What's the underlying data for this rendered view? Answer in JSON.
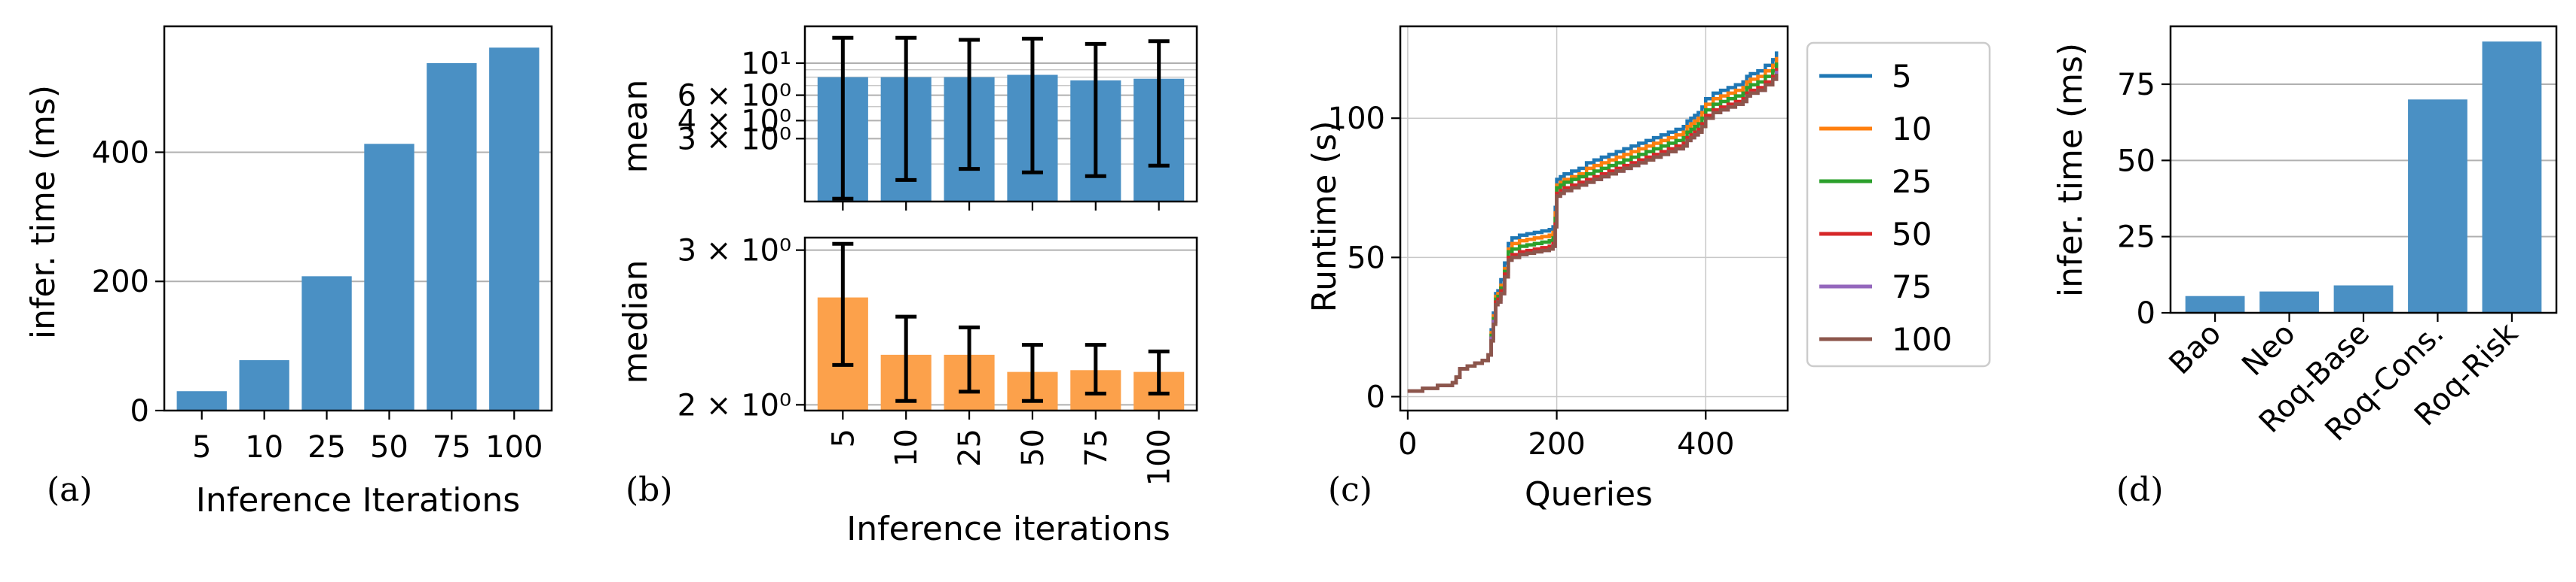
{
  "colors": {
    "blue": "#4a90c4",
    "orange": "#fca14b",
    "series": [
      "#1f77b4",
      "#ff7f0e",
      "#2ca02c",
      "#d62728",
      "#9467bd",
      "#8c564b"
    ]
  },
  "chart_data": [
    {
      "id": "a",
      "panel_label": "(a)",
      "type": "bar",
      "categories": [
        "5",
        "10",
        "25",
        "50",
        "75",
        "100"
      ],
      "values": [
        30,
        78,
        208,
        413,
        538,
        562
      ],
      "xlabel": "Inference Iterations",
      "ylabel": "infer. time (ms)",
      "ylim": [
        0,
        595
      ],
      "yticks": [
        0,
        200,
        400
      ],
      "grid": "horizontal"
    },
    {
      "id": "b",
      "panel_label": "(b)",
      "type": "bar",
      "categories": [
        "5",
        "10",
        "25",
        "50",
        "75",
        "100"
      ],
      "xlabel": "Inference iterations",
      "subplots": [
        {
          "ylabel": "mean",
          "scale": "log",
          "ylim": [
            1.1,
            18
          ],
          "values": [
            8.0,
            8.0,
            8.0,
            8.3,
            7.6,
            7.8
          ],
          "err_low": [
            1.15,
            1.55,
            1.85,
            1.75,
            1.65,
            1.95
          ],
          "err_high": [
            15.0,
            15.0,
            14.5,
            14.8,
            13.6,
            14.2
          ],
          "yticks": [
            {
              "value": 3,
              "label": "3 × 10⁰"
            },
            {
              "value": 4,
              "label": "4 × 10⁰"
            },
            {
              "value": 6,
              "label": "6 × 10⁰"
            },
            {
              "value": 10,
              "label": "10¹"
            }
          ],
          "minor_grid": [
            2,
            3,
            4,
            5,
            6,
            7,
            8,
            9,
            10,
            20
          ]
        },
        {
          "ylabel": "median",
          "scale": "log",
          "ylim": [
            1.97,
            3.1
          ],
          "values": [
            2.65,
            2.28,
            2.28,
            2.18,
            2.19,
            2.18
          ],
          "err_low": [
            2.22,
            2.02,
            2.07,
            2.02,
            2.06,
            2.06
          ],
          "err_high": [
            3.05,
            2.52,
            2.45,
            2.34,
            2.34,
            2.3
          ],
          "yticks": [
            {
              "value": 2,
              "label": "2 × 10⁰"
            },
            {
              "value": 3,
              "label": "3 × 10⁰"
            }
          ]
        }
      ]
    },
    {
      "id": "c",
      "panel_label": "(c)",
      "type": "line",
      "xlabel": "Queries",
      "ylabel": "Runtime (s)",
      "xlim": [
        -10,
        510
      ],
      "ylim": [
        -5,
        133
      ],
      "xticks": [
        0,
        200,
        400
      ],
      "yticks": [
        0,
        50,
        100
      ],
      "legend_position": "outside-right",
      "x": [
        0,
        20,
        40,
        60,
        65,
        70,
        80,
        90,
        100,
        108,
        112,
        115,
        118,
        121,
        125,
        130,
        135,
        140,
        150,
        160,
        170,
        180,
        190,
        195,
        198,
        200,
        205,
        210,
        220,
        230,
        240,
        250,
        260,
        270,
        280,
        290,
        300,
        310,
        320,
        330,
        340,
        350,
        360,
        370,
        375,
        380,
        385,
        390,
        395,
        400,
        410,
        420,
        430,
        440,
        450,
        455,
        460,
        470,
        480,
        490,
        495
      ],
      "series": [
        {
          "name": "5",
          "values": [
            2,
            3,
            4,
            5,
            7,
            10,
            11,
            12,
            13,
            15,
            24,
            30,
            37,
            38,
            42,
            48,
            55,
            57,
            58,
            58.5,
            59,
            59.5,
            60,
            61,
            68,
            78,
            79,
            80,
            81,
            82,
            84,
            85,
            86,
            87,
            88,
            89,
            90,
            91,
            92,
            93,
            94,
            95,
            96,
            97,
            99,
            100,
            101,
            102,
            104,
            107,
            109,
            110,
            111,
            112,
            113,
            115,
            116,
            117,
            119,
            121,
            124
          ]
        },
        {
          "name": "10",
          "values": [
            2,
            3,
            4,
            5,
            7,
            10,
            11,
            12,
            13,
            15,
            23,
            29,
            36,
            37,
            40,
            46,
            53,
            55,
            56,
            56.5,
            57,
            57.5,
            58,
            59,
            66,
            76,
            77,
            78,
            79,
            80,
            82,
            83,
            84,
            85,
            86,
            87,
            88,
            89,
            90,
            91,
            92,
            93,
            94,
            95,
            97,
            98,
            99,
            100,
            102,
            105,
            107,
            108,
            109,
            110,
            111,
            113,
            114,
            115,
            117,
            119,
            122
          ]
        },
        {
          "name": "25",
          "values": [
            2,
            3,
            4,
            5,
            7,
            10,
            11,
            12,
            13,
            15,
            22,
            28,
            35,
            36,
            39,
            45,
            52,
            53,
            54,
            54.5,
            55,
            55.5,
            56,
            57,
            64,
            75,
            76,
            77,
            78,
            79,
            80,
            81,
            82,
            83,
            84,
            85,
            86,
            87,
            88,
            89,
            90,
            91,
            92,
            93,
            95,
            96,
            97,
            98,
            100,
            103,
            105,
            106,
            107,
            108,
            109,
            111,
            112,
            113,
            115,
            117,
            120
          ]
        },
        {
          "name": "50",
          "values": [
            2,
            3,
            4,
            5,
            7,
            10,
            11,
            12,
            13,
            15,
            21,
            27,
            34,
            35,
            38,
            44,
            50,
            51,
            52,
            52.5,
            53,
            53.5,
            54,
            55,
            62,
            73,
            74,
            75,
            76,
            77,
            78,
            79,
            80,
            81,
            82,
            83,
            84,
            85,
            86,
            87,
            88,
            89,
            90,
            91,
            93,
            94,
            95,
            96,
            98,
            101,
            103,
            104,
            105,
            106,
            107,
            109,
            110,
            111,
            113,
            115,
            118
          ]
        },
        {
          "name": "75",
          "values": [
            2,
            3,
            4,
            5,
            7,
            10,
            11,
            12,
            13,
            15,
            21,
            27,
            33,
            34,
            37,
            43,
            49,
            50,
            51,
            51.5,
            52,
            52.5,
            53,
            54,
            61,
            72,
            73,
            74,
            75,
            76,
            77,
            78,
            79,
            80,
            81,
            82,
            83,
            84,
            85,
            86,
            87,
            88,
            89,
            90,
            92,
            93,
            94,
            95,
            97,
            100,
            102,
            103,
            104,
            105,
            106,
            108,
            109,
            110,
            112,
            114,
            117
          ]
        },
        {
          "name": "100",
          "values": [
            2,
            3,
            4,
            5,
            7,
            10,
            11,
            12,
            13,
            15,
            20,
            26,
            33,
            34,
            37,
            43,
            49,
            50,
            51,
            51.5,
            52,
            52.5,
            53,
            54,
            61,
            72,
            73,
            74,
            75,
            76,
            77,
            78,
            79,
            80,
            81,
            82,
            83,
            84,
            85,
            86,
            87,
            88,
            89,
            90,
            92,
            93,
            94,
            95,
            97,
            100,
            102,
            103,
            104,
            105,
            106,
            108,
            109,
            110,
            112,
            114,
            116
          ]
        }
      ]
    },
    {
      "id": "d",
      "panel_label": "(d)",
      "type": "bar",
      "categories": [
        "Bao",
        "Neo",
        "Roq-Base",
        "Roq-Cons.",
        "Roq-Risk"
      ],
      "values": [
        5.5,
        7,
        9,
        70,
        89
      ],
      "ylabel": "infer. time (ms)",
      "ylim": [
        0,
        94
      ],
      "yticks": [
        0,
        25,
        50,
        75
      ],
      "grid": "horizontal"
    }
  ]
}
